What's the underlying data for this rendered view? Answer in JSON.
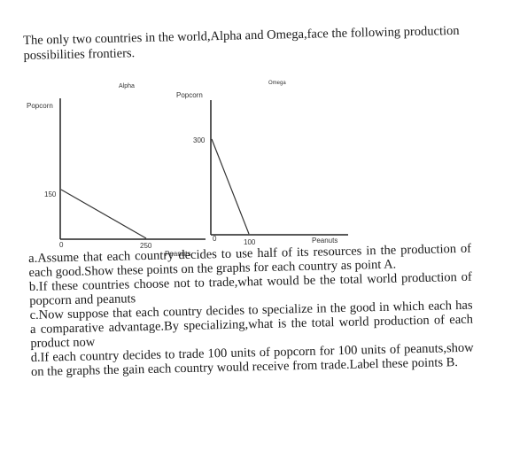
{
  "intro": "The only two countries in the world,Alpha and Omega,face the following production possibilities frontiers.",
  "chart_data": [
    {
      "type": "line",
      "title": "Alpha",
      "xlabel": "Peanuts",
      "ylabel": "Popcorn",
      "origin_label": "0",
      "y_tick": "150",
      "x_tick": "250",
      "series": [
        {
          "x": [
            0,
            250
          ],
          "y": [
            150,
            0
          ]
        }
      ]
    },
    {
      "type": "line",
      "title": "Omega",
      "xlabel": "Peanuts",
      "ylabel": "Popcorn",
      "origin_label": "0",
      "y_tick": "300",
      "x_tick": "100",
      "series": [
        {
          "x": [
            0,
            100
          ],
          "y": [
            300,
            0
          ]
        }
      ]
    }
  ],
  "questions": [
    "a.Assume that each country decides to use half of its resources in the production of each good.Show these points on the graphs for each country as point A.",
    "b.If these countries choose not to trade,what would be the total world production of popcorn and peanuts",
    "c.Now suppose that each country decides to specialize in the good in which each has a comparative advantage.By specializing,what is the total world production of each product now",
    "d.If each country decides to trade 100 units of popcorn for 100 units of peanuts,show on the graphs the gain each country would receive from trade.Label these points B."
  ],
  "colors": {
    "text": "#1a1a1a",
    "axis": "#222222"
  }
}
